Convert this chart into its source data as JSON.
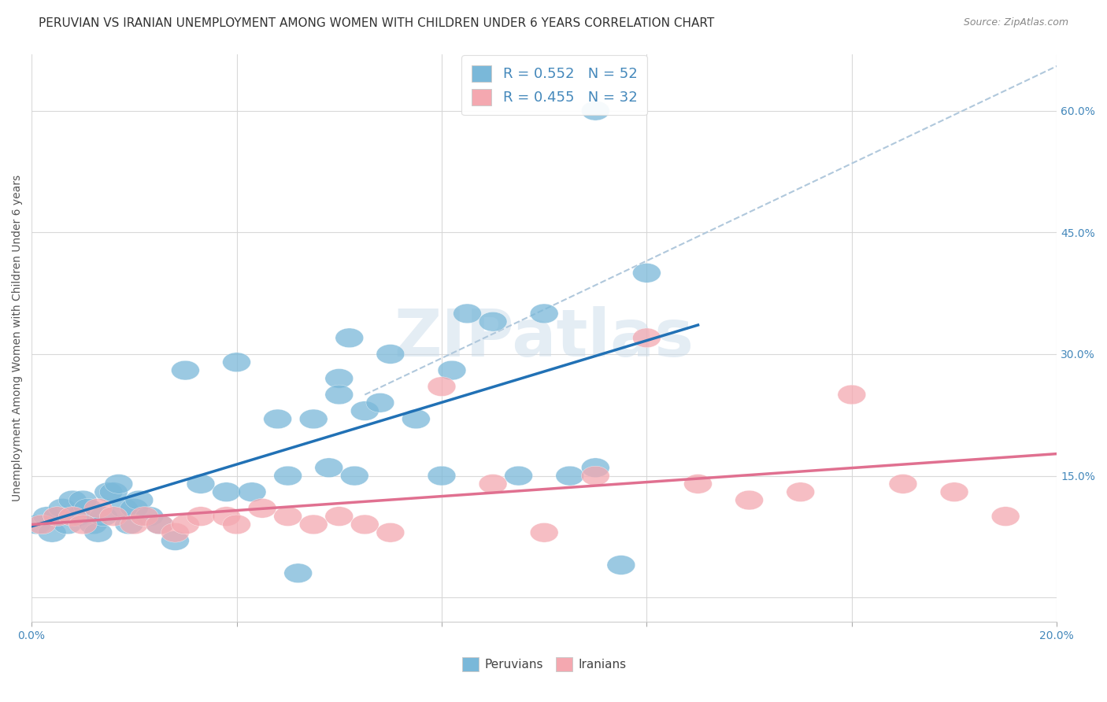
{
  "title": "PERUVIAN VS IRANIAN UNEMPLOYMENT AMONG WOMEN WITH CHILDREN UNDER 6 YEARS CORRELATION CHART",
  "source": "Source: ZipAtlas.com",
  "ylabel": "Unemployment Among Women with Children Under 6 years",
  "xlim": [
    0.0,
    0.2
  ],
  "ylim": [
    -0.03,
    0.67
  ],
  "xticks": [
    0.0,
    0.04,
    0.08,
    0.12,
    0.16,
    0.2
  ],
  "xticklabels": [
    "0.0%",
    "",
    "",
    "",
    "",
    "20.0%"
  ],
  "ytick_positions": [
    0.0,
    0.15,
    0.3,
    0.45,
    0.6
  ],
  "yticklabels": [
    "",
    "15.0%",
    "30.0%",
    "45.0%",
    "60.0%"
  ],
  "peruvian_color": "#7ab8d9",
  "iranian_color": "#f4a8b0",
  "peruvian_line_color": "#2171b5",
  "iranian_line_color": "#e07090",
  "dashed_line_color": "#b0c8dc",
  "r_peruvian": 0.552,
  "n_peruvian": 52,
  "r_iranian": 0.455,
  "n_iranian": 32,
  "peruvian_scatter_x": [
    0.001,
    0.003,
    0.004,
    0.005,
    0.006,
    0.007,
    0.008,
    0.009,
    0.01,
    0.011,
    0.012,
    0.013,
    0.014,
    0.015,
    0.016,
    0.017,
    0.018,
    0.019,
    0.02,
    0.021,
    0.023,
    0.025,
    0.028,
    0.03,
    0.033,
    0.038,
    0.04,
    0.043,
    0.048,
    0.05,
    0.055,
    0.058,
    0.06,
    0.063,
    0.065,
    0.068,
    0.07,
    0.075,
    0.08,
    0.082,
    0.085,
    0.09,
    0.095,
    0.1,
    0.105,
    0.11,
    0.115,
    0.12,
    0.06,
    0.062,
    0.052,
    0.11
  ],
  "peruvian_scatter_y": [
    0.09,
    0.1,
    0.08,
    0.1,
    0.11,
    0.09,
    0.12,
    0.1,
    0.12,
    0.11,
    0.09,
    0.08,
    0.1,
    0.13,
    0.13,
    0.14,
    0.11,
    0.09,
    0.11,
    0.12,
    0.1,
    0.09,
    0.07,
    0.28,
    0.14,
    0.13,
    0.29,
    0.13,
    0.22,
    0.15,
    0.22,
    0.16,
    0.27,
    0.15,
    0.23,
    0.24,
    0.3,
    0.22,
    0.15,
    0.28,
    0.35,
    0.34,
    0.15,
    0.35,
    0.15,
    0.16,
    0.04,
    0.4,
    0.25,
    0.32,
    0.03,
    0.6
  ],
  "iranian_scatter_x": [
    0.002,
    0.005,
    0.008,
    0.01,
    0.013,
    0.016,
    0.02,
    0.022,
    0.025,
    0.028,
    0.03,
    0.033,
    0.038,
    0.04,
    0.045,
    0.05,
    0.055,
    0.06,
    0.065,
    0.07,
    0.08,
    0.09,
    0.1,
    0.11,
    0.12,
    0.13,
    0.14,
    0.15,
    0.16,
    0.17,
    0.18,
    0.19
  ],
  "iranian_scatter_y": [
    0.09,
    0.1,
    0.1,
    0.09,
    0.11,
    0.1,
    0.09,
    0.1,
    0.09,
    0.08,
    0.09,
    0.1,
    0.1,
    0.09,
    0.11,
    0.1,
    0.09,
    0.1,
    0.09,
    0.08,
    0.26,
    0.14,
    0.08,
    0.15,
    0.32,
    0.14,
    0.12,
    0.13,
    0.25,
    0.14,
    0.13,
    0.1
  ],
  "background_color": "#ffffff",
  "grid_color": "#d5d5d5",
  "title_fontsize": 11,
  "axis_label_fontsize": 10,
  "tick_fontsize": 10,
  "legend_fontsize": 13,
  "watermark_text": "ZIPatlas",
  "watermark_color": "#c5d8e8",
  "watermark_fontsize": 60,
  "watermark_alpha": 0.45
}
